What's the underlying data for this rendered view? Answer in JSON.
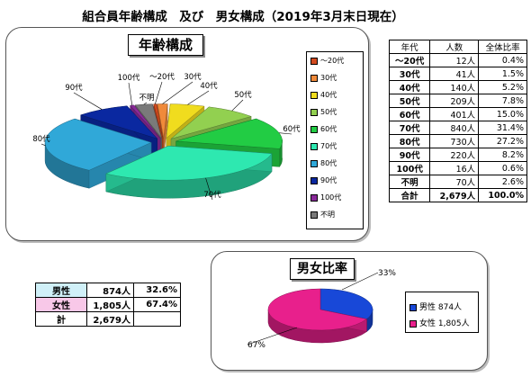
{
  "page": {
    "title": "組合員年齢構成　及び　男女構成（2019年3月末日現在）"
  },
  "age_chart": {
    "title": "年齢構成",
    "legend": [
      "～20代",
      "30代",
      "40代",
      "50代",
      "60代",
      "70代",
      "80代",
      "90代",
      "100代",
      "不明"
    ],
    "callouts": [
      "～20代",
      "30代",
      "40代",
      "50代",
      "60代",
      "70代",
      "80代",
      "90代",
      "100代",
      "不明"
    ]
  },
  "age_table": {
    "headers": [
      "年代",
      "人数",
      "全体比率"
    ],
    "rows": [
      [
        "～20代",
        "12人",
        "0.4%"
      ],
      [
        "30代",
        "41人",
        "1.5%"
      ],
      [
        "40代",
        "140人",
        "5.2%"
      ],
      [
        "50代",
        "209人",
        "7.8%"
      ],
      [
        "60代",
        "401人",
        "15.0%"
      ],
      [
        "70代",
        "840人",
        "31.4%"
      ],
      [
        "80代",
        "730人",
        "27.2%"
      ],
      [
        "90代",
        "220人",
        "8.2%"
      ],
      [
        "100代",
        "16人",
        "0.6%"
      ],
      [
        "不明",
        "70人",
        "2.6%"
      ]
    ],
    "total": [
      "合計",
      "2,679人",
      "100.0%"
    ]
  },
  "gender_table": {
    "rows": [
      [
        "男性",
        "874人",
        "32.6%"
      ],
      [
        "女性",
        "1,805人",
        "67.4%"
      ],
      [
        "計",
        "2,679人",
        ""
      ]
    ]
  },
  "gender_chart": {
    "title": "男女比率",
    "legend": [
      "男性 874人",
      "女性 1,805人"
    ],
    "pct_labels": [
      "33%",
      "67%"
    ]
  },
  "colors": {
    "age": [
      "#d24a1e",
      "#f08a3a",
      "#f0dc1e",
      "#92d050",
      "#22cc44",
      "#2ee8b0",
      "#30a8d8",
      "#0a28a0",
      "#8a2a9a",
      "#7a7a7a"
    ],
    "male": "#1848d8",
    "female": "#e8208c",
    "male_row": "#d0f0f8",
    "female_row": "#f8c8e8"
  },
  "chart_data": [
    {
      "type": "pie",
      "title": "年齢構成",
      "categories": [
        "～20代",
        "30代",
        "40代",
        "50代",
        "60代",
        "70代",
        "80代",
        "90代",
        "100代",
        "不明"
      ],
      "values": [
        12,
        41,
        140,
        209,
        401,
        840,
        730,
        220,
        16,
        70
      ],
      "legend": "right"
    },
    {
      "type": "pie",
      "title": "男女比率",
      "categories": [
        "男性",
        "女性"
      ],
      "values": [
        874,
        1805
      ],
      "data_labels": [
        "33%",
        "67%"
      ],
      "legend": "right"
    }
  ]
}
